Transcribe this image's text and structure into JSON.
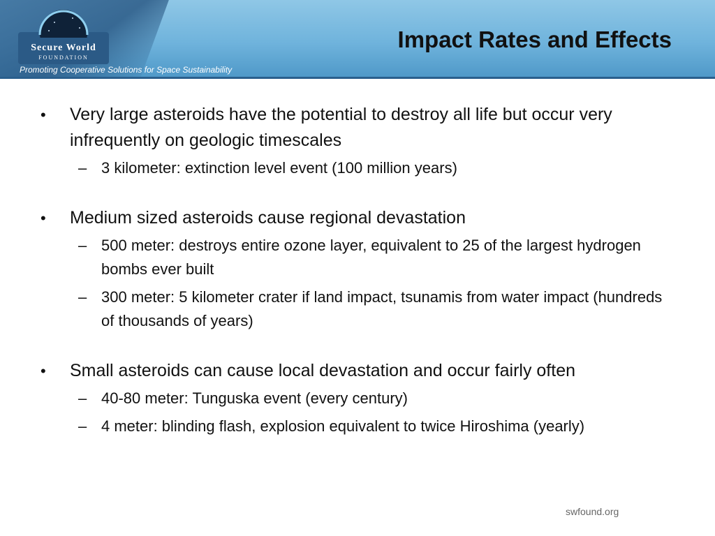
{
  "header": {
    "logo_top": "Secure World",
    "logo_bottom": "FOUNDATION",
    "tagline": "Promoting Cooperative Solutions for Space Sustainability",
    "title": "Impact Rates and Effects"
  },
  "content": {
    "groups": [
      {
        "text": "Very large asteroids have the potential to destroy all life but occur very infrequently on geologic timescales",
        "subs": [
          "3 kilometer:  extinction level event (100 million years)"
        ]
      },
      {
        "text": "Medium sized asteroids cause regional devastation",
        "subs": [
          "500 meter: destroys entire ozone layer, equivalent to 25 of the largest hydrogen bombs ever built",
          "300 meter: 5 kilometer crater if land impact, tsunamis from water impact (hundreds of thousands of years)"
        ]
      },
      {
        "text": "Small asteroids can cause local devastation and occur fairly often",
        "subs": [
          "40-80 meter: Tunguska event (every century)",
          "4 meter:  blinding flash, explosion equivalent to twice Hiroshima (yearly)"
        ]
      }
    ]
  },
  "footer": {
    "site": "swfound.org"
  },
  "colors": {
    "header_top": "#8fc7e6",
    "header_bottom": "#4e98c8",
    "logo_bg": "#2b5a86"
  }
}
